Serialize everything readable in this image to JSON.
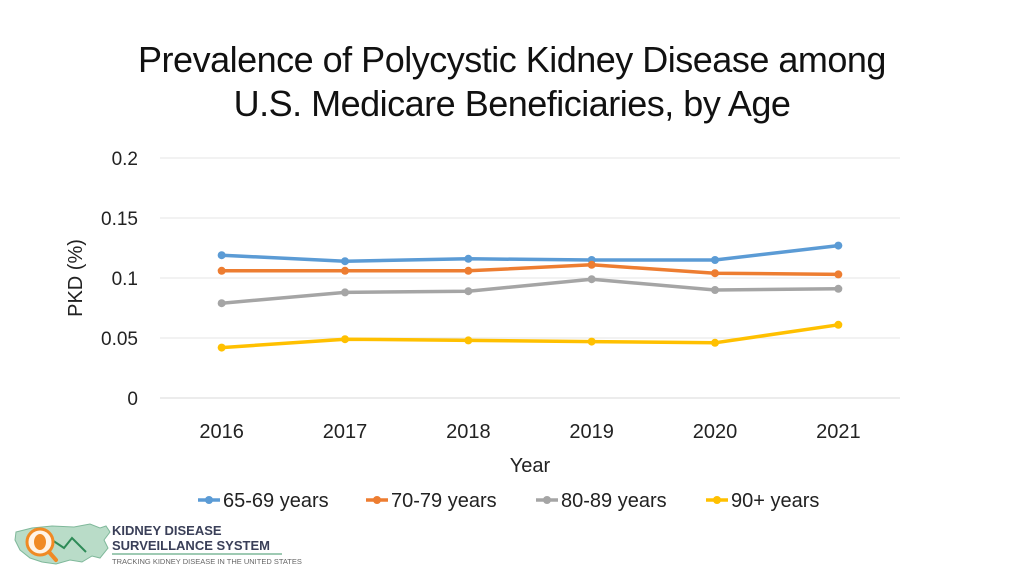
{
  "chart_data": {
    "type": "line",
    "title": "Prevalence of Polycystic Kidney Disease among U.S. Medicare Beneficiaries, by Age",
    "title_lines": [
      "Prevalence of Polycystic Kidney Disease among",
      "U.S. Medicare Beneficiaries, by Age"
    ],
    "xlabel": "Year",
    "ylabel": "PKD (%)",
    "categories": [
      "2016",
      "2017",
      "2018",
      "2019",
      "2020",
      "2021"
    ],
    "ylim": [
      0,
      0.2
    ],
    "yticks": [
      "0",
      "0.05",
      "0.1",
      "0.15",
      "0.2"
    ],
    "ytick_values": [
      0,
      0.05,
      0.1,
      0.15,
      0.2
    ],
    "grid": true,
    "legend_position": "bottom",
    "series": [
      {
        "name": "65-69 years",
        "color": "#5b9bd5",
        "values": [
          0.119,
          0.114,
          0.116,
          0.115,
          0.115,
          0.127
        ]
      },
      {
        "name": "70-79 years",
        "color": "#ed7d31",
        "values": [
          0.106,
          0.106,
          0.106,
          0.111,
          0.104,
          0.103
        ]
      },
      {
        "name": "80-89 years",
        "color": "#a5a5a5",
        "values": [
          0.079,
          0.088,
          0.089,
          0.099,
          0.09,
          0.091
        ]
      },
      {
        "name": "90+ years",
        "color": "#ffc000",
        "values": [
          0.042,
          0.049,
          0.048,
          0.047,
          0.046,
          0.061
        ]
      }
    ]
  },
  "logo": {
    "line1": "KIDNEY DISEASE",
    "line2": "SURVEILLANCE SYSTEM",
    "line3": "TRACKING KIDNEY DISEASE IN THE UNITED STATES"
  }
}
